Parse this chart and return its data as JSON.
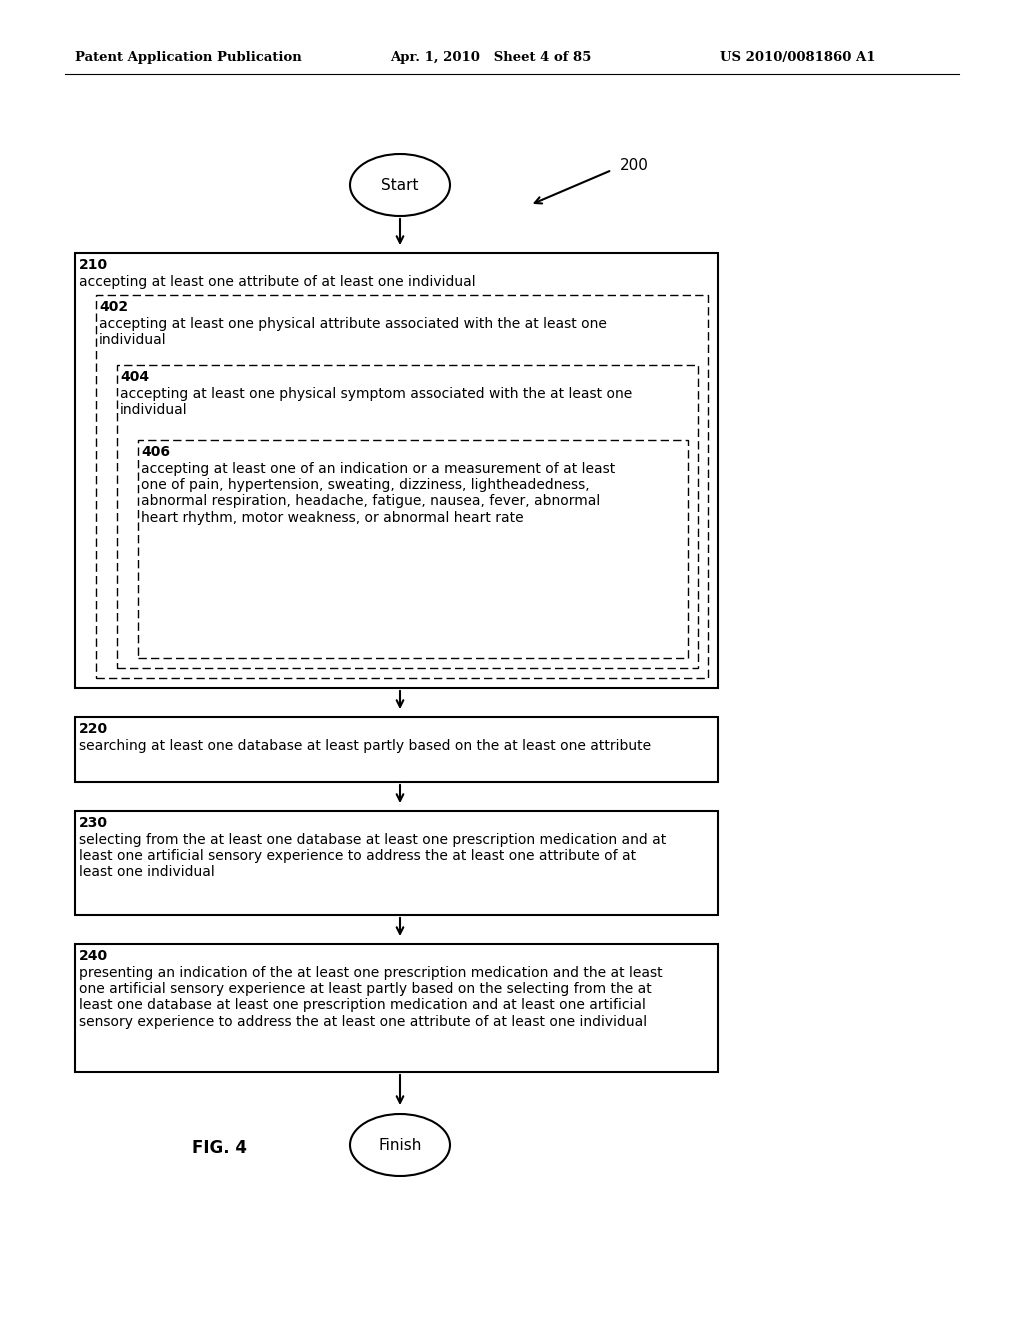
{
  "bg_color": "#ffffff",
  "header_left": "Patent Application Publication",
  "header_mid": "Apr. 1, 2010   Sheet 4 of 85",
  "header_right": "US 2010/0081860 A1",
  "fig_label": "FIG. 4",
  "diagram_ref": "200",
  "start_label": "Start",
  "finish_label": "Finish",
  "box210_num": "210",
  "box210_text": "accepting at least one attribute of at least one individual",
  "box402_num": "402",
  "box402_text": "accepting at least one physical attribute associated with the at least one\nindividual",
  "box404_num": "404",
  "box404_text": "accepting at least one physical symptom associated with the at least one\nindividual",
  "box406_num": "406",
  "box406_text": "accepting at least one of an indication or a measurement of at least\none of pain, hypertension, sweating, dizziness, lightheadedness,\nabnormal respiration, headache, fatigue, nausea, fever, abnormal\nheart rhythm, motor weakness, or abnormal heart rate",
  "box220_num": "220",
  "box220_text": "searching at least one database at least partly based on the at least one attribute",
  "box230_num": "230",
  "box230_text": "selecting from the at least one database at least one prescription medication and at\nleast one artificial sensory experience to address the at least one attribute of at\nleast one individual",
  "box240_num": "240",
  "box240_text": "presenting an indication of the at least one prescription medication and the at least\none artificial sensory experience at least partly based on the selecting from the at\nleast one database at least one prescription medication and at least one artificial\nsensory experience to address the at least one attribute of at least one individual"
}
